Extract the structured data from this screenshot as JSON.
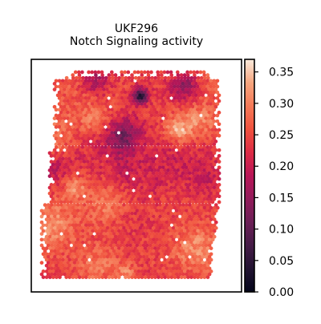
{
  "chart_data": {
    "type": "heatmap",
    "title_line1": "UKF296",
    "title_line2": "Notch Signaling activity",
    "colormap": "rocket",
    "colorbar": {
      "min": 0.0,
      "max": 0.37,
      "ticks": [
        0.0,
        0.05,
        0.1,
        0.15,
        0.2,
        0.25,
        0.3,
        0.35
      ],
      "tick_labels": [
        "0.00",
        "0.05",
        "0.10",
        "0.15",
        "0.20",
        "0.25",
        "0.30",
        "0.35"
      ]
    },
    "value_range_observed": [
      0.03,
      0.37
    ],
    "typical_value": 0.24,
    "xlabel": "",
    "ylabel": "",
    "grid": false,
    "axis_ticks": false
  }
}
